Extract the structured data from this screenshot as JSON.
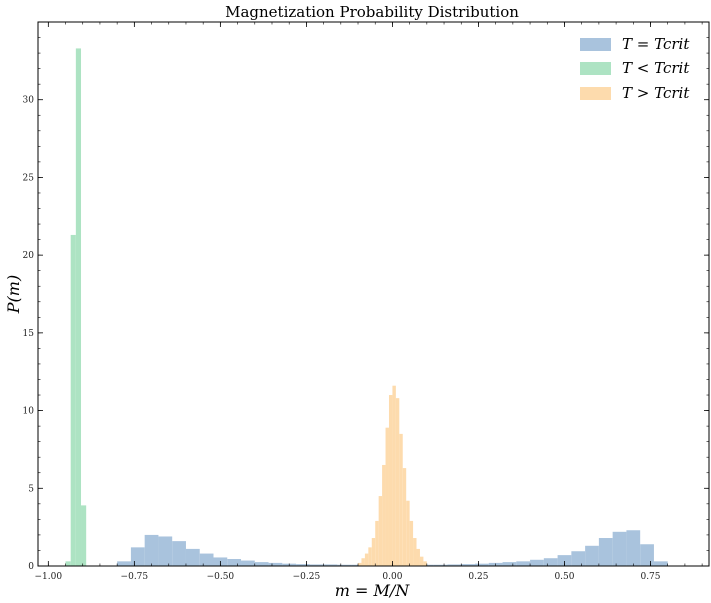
{
  "chart_data": {
    "type": "histogram",
    "title": "Magnetization Probability Distribution",
    "xlabel": "m = M/N",
    "ylabel": "P(m)",
    "xlim": [
      -1.03,
      0.92
    ],
    "ylim": [
      0,
      35.0
    ],
    "xticks": [
      -1.0,
      -0.75,
      -0.5,
      -0.25,
      0.0,
      0.25,
      0.5,
      0.75
    ],
    "xtick_labels": [
      "−1.00",
      "−0.75",
      "−0.50",
      "−0.25",
      "0.00",
      "0.25",
      "0.50",
      "0.75"
    ],
    "yticks": [
      0,
      5,
      10,
      15,
      20,
      25,
      30
    ],
    "ytick_labels": [
      "0",
      "5",
      "10",
      "15",
      "20",
      "25",
      "30"
    ],
    "legend_position": "top-right",
    "series": [
      {
        "name": "T = Tcrit",
        "color": "#A9C3DD",
        "bins": [
          {
            "x0": -0.8,
            "x1": -0.76,
            "value": 0.3
          },
          {
            "x0": -0.76,
            "x1": -0.72,
            "value": 1.2
          },
          {
            "x0": -0.72,
            "x1": -0.68,
            "value": 2.0
          },
          {
            "x0": -0.68,
            "x1": -0.64,
            "value": 1.9
          },
          {
            "x0": -0.64,
            "x1": -0.6,
            "value": 1.6
          },
          {
            "x0": -0.6,
            "x1": -0.56,
            "value": 1.1
          },
          {
            "x0": -0.56,
            "x1": -0.52,
            "value": 0.8
          },
          {
            "x0": -0.52,
            "x1": -0.48,
            "value": 0.55
          },
          {
            "x0": -0.48,
            "x1": -0.44,
            "value": 0.45
          },
          {
            "x0": -0.44,
            "x1": -0.4,
            "value": 0.35
          },
          {
            "x0": -0.4,
            "x1": -0.36,
            "value": 0.25
          },
          {
            "x0": -0.36,
            "x1": -0.32,
            "value": 0.2
          },
          {
            "x0": -0.32,
            "x1": -0.28,
            "value": 0.15
          },
          {
            "x0": -0.28,
            "x1": -0.24,
            "value": 0.12
          },
          {
            "x0": -0.24,
            "x1": -0.2,
            "value": 0.1
          },
          {
            "x0": -0.2,
            "x1": -0.16,
            "value": 0.1
          },
          {
            "x0": -0.16,
            "x1": -0.12,
            "value": 0.08
          },
          {
            "x0": -0.12,
            "x1": -0.08,
            "value": 0.08
          },
          {
            "x0": -0.08,
            "x1": -0.04,
            "value": 0.07
          },
          {
            "x0": -0.04,
            "x1": 0.0,
            "value": 0.07
          },
          {
            "x0": 0.0,
            "x1": 0.04,
            "value": 0.07
          },
          {
            "x0": 0.04,
            "x1": 0.08,
            "value": 0.07
          },
          {
            "x0": 0.08,
            "x1": 0.12,
            "value": 0.08
          },
          {
            "x0": 0.12,
            "x1": 0.16,
            "value": 0.08
          },
          {
            "x0": 0.16,
            "x1": 0.2,
            "value": 0.1
          },
          {
            "x0": 0.2,
            "x1": 0.24,
            "value": 0.12
          },
          {
            "x0": 0.24,
            "x1": 0.28,
            "value": 0.15
          },
          {
            "x0": 0.28,
            "x1": 0.32,
            "value": 0.2
          },
          {
            "x0": 0.32,
            "x1": 0.36,
            "value": 0.25
          },
          {
            "x0": 0.36,
            "x1": 0.4,
            "value": 0.3
          },
          {
            "x0": 0.4,
            "x1": 0.44,
            "value": 0.4
          },
          {
            "x0": 0.44,
            "x1": 0.48,
            "value": 0.5
          },
          {
            "x0": 0.48,
            "x1": 0.52,
            "value": 0.7
          },
          {
            "x0": 0.52,
            "x1": 0.56,
            "value": 0.95
          },
          {
            "x0": 0.56,
            "x1": 0.6,
            "value": 1.3
          },
          {
            "x0": 0.6,
            "x1": 0.64,
            "value": 1.8
          },
          {
            "x0": 0.64,
            "x1": 0.68,
            "value": 2.2
          },
          {
            "x0": 0.68,
            "x1": 0.72,
            "value": 2.3
          },
          {
            "x0": 0.72,
            "x1": 0.76,
            "value": 1.4
          },
          {
            "x0": 0.76,
            "x1": 0.8,
            "value": 0.3
          }
        ]
      },
      {
        "name": "T < Tcrit",
        "color": "#ADE3C3",
        "bins": [
          {
            "x0": -0.95,
            "x1": -0.935,
            "value": 0.3
          },
          {
            "x0": -0.935,
            "x1": -0.92,
            "value": 21.3
          },
          {
            "x0": -0.92,
            "x1": -0.905,
            "value": 33.3
          },
          {
            "x0": -0.905,
            "x1": -0.89,
            "value": 3.9
          }
        ]
      },
      {
        "name": "T > Tcrit",
        "color": "#FDDBAD",
        "bins": [
          {
            "x0": -0.1,
            "x1": -0.09,
            "value": 0.2
          },
          {
            "x0": -0.09,
            "x1": -0.08,
            "value": 0.5
          },
          {
            "x0": -0.08,
            "x1": -0.07,
            "value": 0.8
          },
          {
            "x0": -0.07,
            "x1": -0.06,
            "value": 1.2
          },
          {
            "x0": -0.06,
            "x1": -0.05,
            "value": 1.8
          },
          {
            "x0": -0.05,
            "x1": -0.04,
            "value": 2.9
          },
          {
            "x0": -0.04,
            "x1": -0.03,
            "value": 4.5
          },
          {
            "x0": -0.03,
            "x1": -0.02,
            "value": 6.5
          },
          {
            "x0": -0.02,
            "x1": -0.01,
            "value": 8.9
          },
          {
            "x0": -0.01,
            "x1": 0.0,
            "value": 11.0
          },
          {
            "x0": 0.0,
            "x1": 0.01,
            "value": 11.6
          },
          {
            "x0": 0.01,
            "x1": 0.02,
            "value": 10.8
          },
          {
            "x0": 0.02,
            "x1": 0.03,
            "value": 8.5
          },
          {
            "x0": 0.03,
            "x1": 0.04,
            "value": 6.3
          },
          {
            "x0": 0.04,
            "x1": 0.05,
            "value": 4.2
          },
          {
            "x0": 0.05,
            "x1": 0.06,
            "value": 2.9
          },
          {
            "x0": 0.06,
            "x1": 0.07,
            "value": 1.8
          },
          {
            "x0": 0.07,
            "x1": 0.08,
            "value": 1.1
          },
          {
            "x0": 0.08,
            "x1": 0.09,
            "value": 0.6
          },
          {
            "x0": 0.09,
            "x1": 0.1,
            "value": 0.3
          }
        ]
      }
    ]
  }
}
